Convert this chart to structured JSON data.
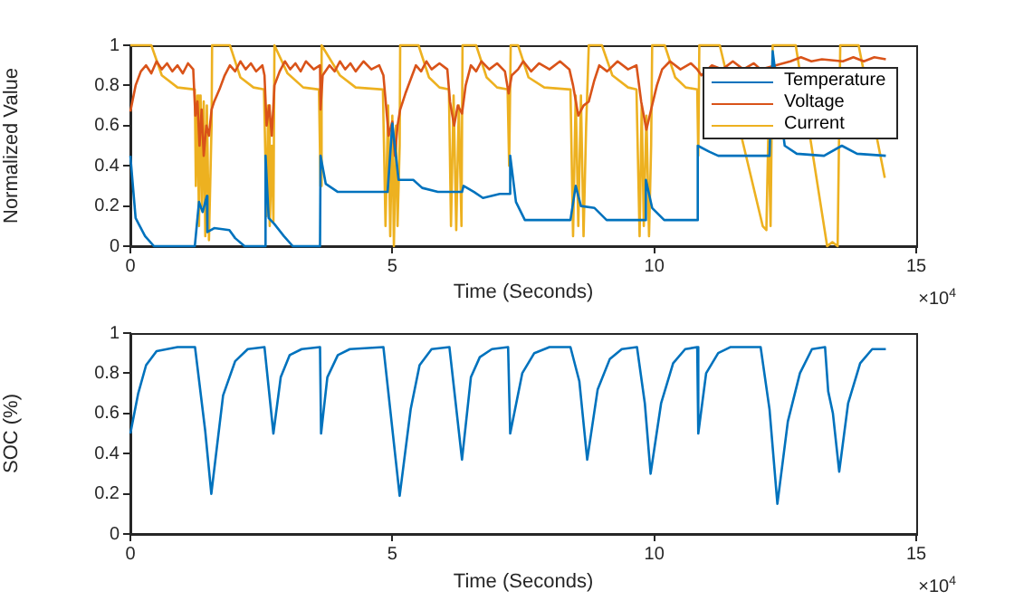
{
  "chart_data": [
    {
      "type": "line",
      "xlabel": "Time (Seconds)",
      "ylabel": "Normalized Value",
      "xlim": [
        0,
        15
      ],
      "xticks": [
        0,
        5,
        10,
        15
      ],
      "ylim": [
        0,
        1
      ],
      "yticks": [
        0,
        0.2,
        0.4,
        0.6,
        0.8,
        1
      ],
      "grid": false,
      "legend": "top right",
      "marker": "none",
      "line_style": "solid",
      "annotations": [
        "×10$^{4}$"
      ],
      "series": [
        {
          "name": "Temperature",
          "color": "#0072bd",
          "x": [
            0,
            0.1,
            0.16,
            0.28,
            0.45,
            1.23,
            1.31,
            1.38,
            1.46,
            1.47,
            1.6,
            1.89,
            2.0,
            2.18,
            2.56,
            2.58,
            2.64,
            2.75,
            2.93,
            3.1,
            3.62,
            3.63,
            3.73,
            3.96,
            4.91,
            5.0,
            5.12,
            5.4,
            5.57,
            5.87,
            6.33,
            6.36,
            6.56,
            6.73,
            7.05,
            7.24,
            7.25,
            7.36,
            7.53,
            8.4,
            8.5,
            8.6,
            8.86,
            9.09,
            9.82,
            9.84,
            9.96,
            10.19,
            10.82,
            10.83,
            11.05,
            11.22,
            12.2,
            12.26,
            12.49,
            12.72,
            13.24,
            13.58,
            13.87,
            14.42
          ],
          "values": [
            0.45,
            0.14,
            0.11,
            0.05,
            0,
            0,
            0.22,
            0.17,
            0.25,
            0.07,
            0.09,
            0.08,
            0.04,
            0,
            0,
            0.45,
            0.14,
            0.11,
            0.05,
            0,
            0,
            0.45,
            0.31,
            0.27,
            0.27,
            0.61,
            0.33,
            0.33,
            0.29,
            0.27,
            0.27,
            0.3,
            0.27,
            0.24,
            0.26,
            0.26,
            0.45,
            0.22,
            0.13,
            0.13,
            0.3,
            0.2,
            0.19,
            0.13,
            0.13,
            0.33,
            0.19,
            0.13,
            0.13,
            0.5,
            0.47,
            0.45,
            0.45,
            0.97,
            0.5,
            0.46,
            0.45,
            0.5,
            0.46,
            0.45
          ]
        },
        {
          "name": "Voltage",
          "color": "#d95319",
          "x": [
            0,
            0.1,
            0.2,
            0.3,
            0.4,
            0.5,
            0.6,
            0.7,
            0.8,
            0.9,
            1.0,
            1.1,
            1.2,
            1.24,
            1.28,
            1.32,
            1.36,
            1.4,
            1.45,
            1.5,
            1.55,
            1.6,
            1.7,
            1.8,
            1.9,
            2.0,
            2.1,
            2.2,
            2.3,
            2.4,
            2.52,
            2.56,
            2.6,
            2.65,
            2.7,
            2.75,
            2.85,
            2.95,
            3.05,
            3.15,
            3.25,
            3.35,
            3.5,
            3.62,
            3.63,
            3.67,
            3.8,
            3.9,
            4.0,
            4.1,
            4.2,
            4.3,
            4.45,
            4.6,
            4.75,
            4.83,
            4.88,
            4.93,
            5.0,
            5.05,
            5.1,
            5.15,
            5.25,
            5.35,
            5.45,
            5.55,
            5.65,
            5.75,
            5.9,
            6.05,
            6.1,
            6.18,
            6.25,
            6.33,
            6.4,
            6.5,
            6.6,
            6.7,
            6.85,
            7.0,
            7.15,
            7.22,
            7.28,
            7.4,
            7.5,
            7.65,
            7.8,
            8.0,
            8.2,
            8.38,
            8.45,
            8.55,
            8.65,
            8.75,
            8.85,
            8.95,
            9.1,
            9.3,
            9.5,
            9.66,
            9.75,
            9.85,
            9.94,
            10.05,
            10.15,
            10.3,
            10.5,
            10.7,
            10.82,
            10.9,
            11.1,
            11.3,
            11.5,
            11.7,
            11.9,
            12.03,
            12.6,
            12.8,
            13.0,
            13.2,
            13.6,
            13.8,
            14.0,
            14.2,
            14.42
          ],
          "values": [
            0.67,
            0.8,
            0.87,
            0.9,
            0.86,
            0.92,
            0.88,
            0.91,
            0.87,
            0.9,
            0.86,
            0.91,
            0.88,
            0.65,
            0.72,
            0.5,
            0.68,
            0.45,
            0.6,
            0.55,
            0.68,
            0.72,
            0.78,
            0.85,
            0.9,
            0.87,
            0.92,
            0.88,
            0.91,
            0.87,
            0.9,
            0.85,
            0.6,
            0.7,
            0.55,
            0.8,
            0.87,
            0.92,
            0.88,
            0.91,
            0.87,
            0.92,
            0.88,
            0.9,
            0.68,
            0.85,
            0.9,
            0.87,
            0.92,
            0.88,
            0.91,
            0.87,
            0.92,
            0.88,
            0.9,
            0.85,
            0.7,
            0.55,
            0.62,
            0.45,
            0.6,
            0.68,
            0.76,
            0.83,
            0.9,
            0.87,
            0.92,
            0.88,
            0.91,
            0.88,
            0.72,
            0.6,
            0.7,
            0.66,
            0.8,
            0.9,
            0.87,
            0.92,
            0.88,
            0.91,
            0.87,
            0.76,
            0.85,
            0.88,
            0.92,
            0.87,
            0.91,
            0.88,
            0.92,
            0.88,
            0.8,
            0.65,
            0.7,
            0.72,
            0.82,
            0.9,
            0.87,
            0.92,
            0.88,
            0.9,
            0.72,
            0.58,
            0.68,
            0.8,
            0.88,
            0.92,
            0.88,
            0.91,
            0.88,
            0.85,
            0.9,
            0.88,
            0.92,
            0.88,
            0.91,
            0.88,
            0.92,
            0.94,
            0.92,
            0.93,
            0.92,
            0.94,
            0.92,
            0.94,
            0.93
          ]
        },
        {
          "name": "Current",
          "color": "#edb120",
          "x": [
            0,
            0.4,
            0.6,
            0.9,
            1.23,
            1.25,
            1.28,
            1.31,
            1.34,
            1.37,
            1.4,
            1.43,
            1.46,
            1.5,
            1.55,
            1.56,
            1.9,
            2.1,
            2.35,
            2.55,
            2.6,
            2.63,
            2.66,
            2.7,
            2.73,
            2.75,
            3.0,
            3.3,
            3.6,
            3.63,
            3.65,
            4.0,
            4.3,
            4.82,
            4.87,
            4.92,
            4.96,
            5.0,
            5.03,
            5.07,
            5.1,
            5.14,
            5.15,
            5.5,
            5.7,
            5.9,
            6.08,
            6.12,
            6.17,
            6.22,
            6.27,
            6.32,
            6.34,
            6.6,
            6.8,
            7.0,
            7.2,
            7.23,
            7.26,
            7.4,
            7.6,
            7.9,
            8.4,
            8.45,
            8.5,
            8.55,
            8.6,
            8.65,
            8.7,
            8.75,
            9.0,
            9.2,
            9.5,
            9.66,
            9.72,
            9.76,
            9.8,
            9.85,
            9.9,
            9.94,
            9.96,
            10.2,
            10.4,
            10.6,
            10.82,
            10.84,
            10.86,
            11.25,
            12.07,
            12.14,
            12.18,
            12.22,
            12.26,
            12.7,
            13.3,
            13.4,
            13.5,
            13.55,
            13.9,
            14.4
          ],
          "values": [
            1,
            1,
            0.85,
            0.79,
            0.78,
            0.3,
            0.75,
            0.1,
            0.75,
            0.2,
            0.72,
            0.05,
            0.7,
            0.03,
            0.6,
            1,
            1,
            0.84,
            0.79,
            0.78,
            0.15,
            0.7,
            0.1,
            0.5,
            0.12,
            1,
            0.86,
            0.79,
            0.78,
            0.3,
            1,
            0.85,
            0.79,
            0.78,
            0.1,
            0.7,
            0.05,
            0.65,
            0,
            0.6,
            0.1,
            0.5,
            1,
            1,
            0.84,
            0.79,
            0.78,
            0.1,
            0.75,
            0.08,
            0.7,
            0.1,
            1,
            1,
            0.84,
            0.79,
            0.78,
            0.4,
            1,
            1,
            0.84,
            0.79,
            0.78,
            0.05,
            0.75,
            0.1,
            0.75,
            0.05,
            0.6,
            1,
            1,
            0.85,
            0.79,
            0.78,
            0.05,
            0.7,
            0.1,
            0.65,
            0.05,
            0.5,
            1,
            1,
            0.84,
            0.79,
            0.78,
            0.45,
            1,
            1,
            0.1,
            0.08,
            0.6,
            0.1,
            1,
            1,
            0,
            0.02,
            0,
            1,
            1,
            0.34
          ]
        }
      ]
    },
    {
      "type": "line",
      "xlabel": "Time (Seconds)",
      "ylabel": "SOC (%)",
      "xlim": [
        0,
        15
      ],
      "xticks": [
        0,
        5,
        10,
        15
      ],
      "ylim": [
        0,
        1
      ],
      "yticks": [
        0,
        0.2,
        0.4,
        0.6,
        0.8,
        1
      ],
      "grid": false,
      "legend": false,
      "marker": "none",
      "line_style": "solid",
      "annotations": [
        "×10$^{4}$"
      ],
      "series": [
        {
          "color": "#0072bd",
          "x": [
            0,
            0.15,
            0.3,
            0.5,
            0.9,
            1.234,
            1.43,
            1.545,
            1.77,
            2.0,
            2.24,
            2.56,
            2.73,
            2.87,
            3.04,
            3.27,
            3.62,
            3.64,
            3.76,
            3.96,
            4.19,
            4.83,
            5.14,
            5.35,
            5.52,
            5.75,
            6.09,
            6.33,
            6.5,
            6.67,
            6.9,
            7.21,
            7.25,
            7.48,
            7.71,
            8.0,
            8.4,
            8.57,
            8.72,
            8.92,
            9.15,
            9.38,
            9.67,
            9.82,
            9.93,
            10.13,
            10.36,
            10.59,
            10.82,
            10.84,
            10.99,
            11.22,
            11.45,
            12.03,
            12.2,
            12.35,
            12.55,
            12.78,
            13.01,
            13.26,
            13.32,
            13.41,
            13.53,
            13.7,
            13.93,
            14.16,
            14.42
          ],
          "values": [
            0.5,
            0.7,
            0.84,
            0.91,
            0.93,
            0.93,
            0.51,
            0.2,
            0.69,
            0.86,
            0.92,
            0.93,
            0.5,
            0.78,
            0.89,
            0.92,
            0.93,
            0.5,
            0.78,
            0.89,
            0.92,
            0.93,
            0.19,
            0.62,
            0.84,
            0.92,
            0.93,
            0.37,
            0.78,
            0.88,
            0.92,
            0.93,
            0.5,
            0.8,
            0.9,
            0.93,
            0.93,
            0.76,
            0.37,
            0.72,
            0.87,
            0.92,
            0.93,
            0.65,
            0.3,
            0.65,
            0.85,
            0.92,
            0.93,
            0.5,
            0.8,
            0.9,
            0.93,
            0.93,
            0.62,
            0.15,
            0.56,
            0.8,
            0.92,
            0.93,
            0.71,
            0.6,
            0.31,
            0.65,
            0.85,
            0.92,
            0.92
          ]
        }
      ]
    }
  ]
}
